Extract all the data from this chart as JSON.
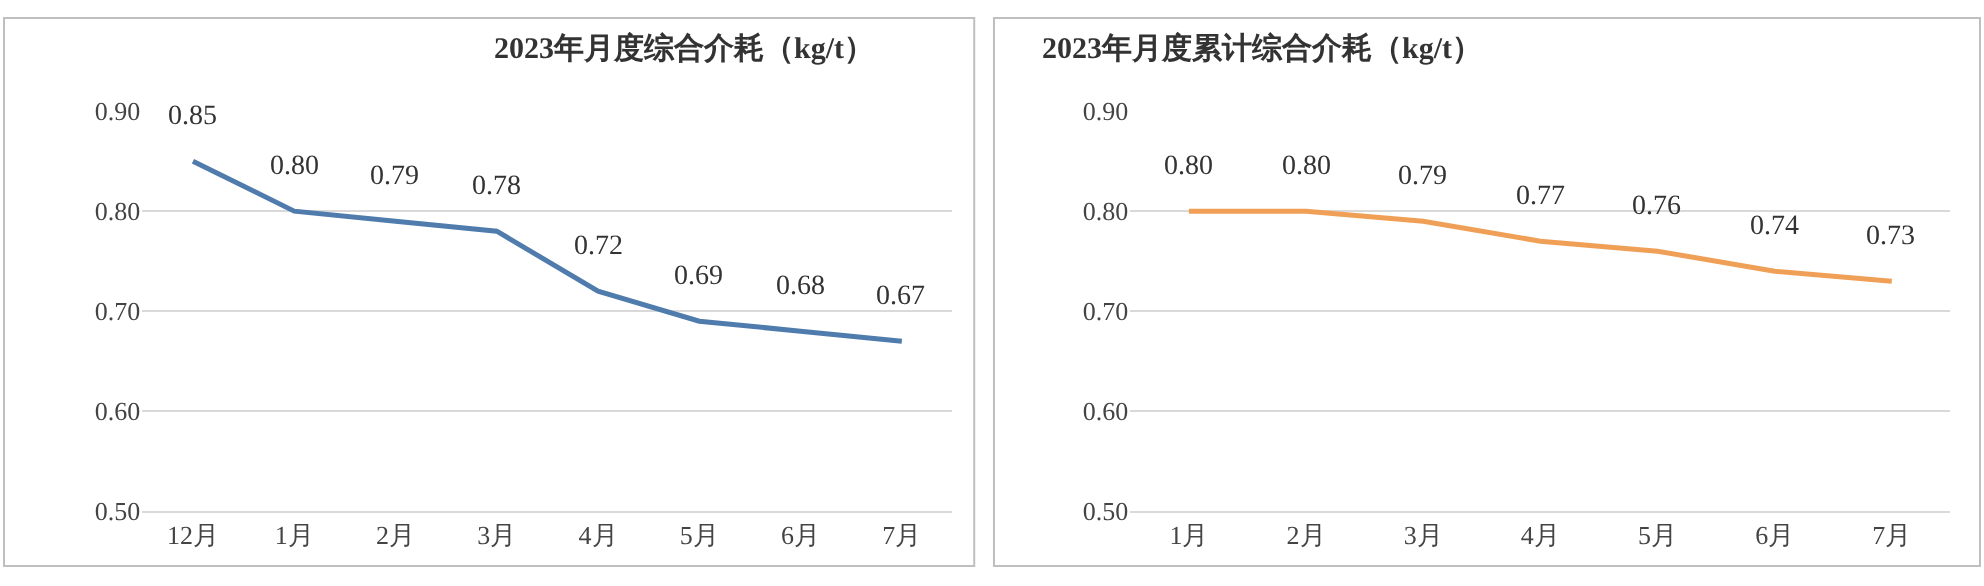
{
  "chart_data": [
    {
      "type": "line",
      "title": "2023年月度综合介耗（kg/t）",
      "categories": [
        "12月",
        "1月",
        "2月",
        "3月",
        "4月",
        "5月",
        "6月",
        "7月"
      ],
      "series": [
        {
          "color": "#4f7cac",
          "values": [
            0.85,
            0.8,
            0.79,
            0.78,
            0.72,
            0.69,
            0.68,
            0.67
          ],
          "value_labels": [
            "0.85",
            "0.80",
            "0.79",
            "0.78",
            "0.72",
            "0.69",
            "0.68",
            "0.67"
          ]
        }
      ],
      "ylim": [
        0.5,
        0.9
      ],
      "yticks": [
        {
          "value": 0.5,
          "label": "0.50"
        },
        {
          "value": 0.6,
          "label": "0.60"
        },
        {
          "value": 0.7,
          "label": "0.70"
        },
        {
          "value": 0.8,
          "label": "0.80"
        },
        {
          "value": 0.9,
          "label": "0.90"
        }
      ],
      "grid": "y",
      "marker": "none",
      "line_style": "solid"
    },
    {
      "type": "line",
      "title": "2023年月度累计综合介耗（kg/t）",
      "categories": [
        "1月",
        "2月",
        "3月",
        "4月",
        "5月",
        "6月",
        "7月"
      ],
      "series": [
        {
          "color": "#f0a056",
          "values": [
            0.8,
            0.8,
            0.79,
            0.77,
            0.76,
            0.74,
            0.73
          ],
          "value_labels": [
            "0.80",
            "0.80",
            "0.79",
            "0.77",
            "0.76",
            "0.74",
            "0.73"
          ]
        }
      ],
      "ylim": [
        0.5,
        0.9
      ],
      "yticks": [
        {
          "value": 0.5,
          "label": "0.50"
        },
        {
          "value": 0.6,
          "label": "0.60"
        },
        {
          "value": 0.7,
          "label": "0.70"
        },
        {
          "value": 0.8,
          "label": "0.80"
        },
        {
          "value": 0.9,
          "label": "0.90"
        }
      ],
      "grid": "y",
      "marker": "none",
      "line_style": "solid"
    }
  ]
}
